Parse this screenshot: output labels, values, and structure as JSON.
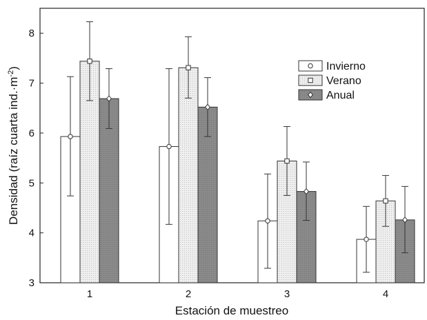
{
  "chart_data": {
    "type": "bar",
    "xlabel": "Estación de muestreo",
    "ylabel_main": "Densidad (raíz cuarta ind.·m",
    "ylabel_sup": "-2",
    "ylabel_close": ")",
    "categories": [
      "1",
      "2",
      "3",
      "4"
    ],
    "ylim": [
      3,
      8.5
    ],
    "yticks": [
      3,
      4,
      5,
      6,
      7,
      8
    ],
    "grid": false,
    "legend_position": "top-right",
    "error_bars": "mean ± range/interval",
    "series": [
      {
        "name": "Invierno",
        "color": "#ffffff",
        "marker": "circle",
        "values": [
          5.93,
          5.73,
          4.24,
          3.87
        ],
        "err_low": [
          4.74,
          4.17,
          3.29,
          3.21
        ],
        "err_high": [
          7.13,
          7.29,
          5.18,
          4.53
        ]
      },
      {
        "name": "Verano",
        "color": "#e6e6e6",
        "marker": "square",
        "values": [
          7.44,
          7.31,
          5.44,
          4.64
        ],
        "err_low": [
          6.65,
          6.7,
          4.75,
          4.13
        ],
        "err_high": [
          8.23,
          7.93,
          6.13,
          5.15
        ]
      },
      {
        "name": "Anual",
        "color": "#888888",
        "marker": "diamond",
        "values": [
          6.69,
          6.52,
          4.83,
          4.26
        ],
        "err_low": [
          6.09,
          5.93,
          4.25,
          3.6
        ],
        "err_high": [
          7.29,
          7.11,
          5.42,
          4.93
        ]
      }
    ]
  }
}
